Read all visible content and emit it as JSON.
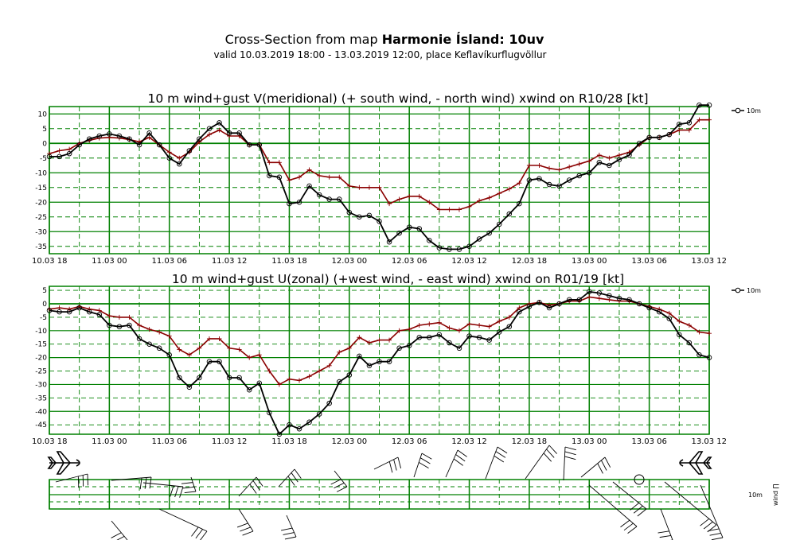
{
  "header": {
    "title_prefix": "Cross-Section from map ",
    "title_bold": "Harmonie Ísland: 10uv",
    "subtitle": "valid 10.03.2019 18:00 - 13.03.2019 12:00, place Keflavíkurflugvöllur"
  },
  "chart_data": [
    {
      "type": "line",
      "title": "10 m wind+gust V(meridional) (+ south wind, - north wind) xwind on R10/28 [kt]",
      "x_tick_labels": [
        "10.03 18",
        "11.03 00",
        "11.03 06",
        "11.03 12",
        "11.03 18",
        "12.03 00",
        "12.03 06",
        "12.03 12",
        "12.03 18",
        "13.03 00",
        "13.03 06",
        "13.03 12"
      ],
      "x_unit": "hours after 10.03 18:00",
      "xlim": [
        0,
        66
      ],
      "ylim": [
        -37.5,
        12.5
      ],
      "y_ticks": [
        10,
        5,
        0,
        -5,
        -10,
        -15,
        -20,
        -25,
        -30,
        -35
      ],
      "grid": true,
      "legend_position": "right",
      "colors": {
        "wind": "#000000",
        "gust": "#8b0000",
        "grid": "#008000"
      },
      "series": [
        {
          "name": "10m",
          "role": "wind",
          "x": [
            0,
            1,
            2,
            3,
            4,
            5,
            6,
            7,
            8,
            9,
            10,
            11,
            12,
            13,
            14,
            15,
            16,
            17,
            18,
            19,
            20,
            21,
            22,
            23,
            24,
            25,
            26,
            27,
            28,
            29,
            30,
            31,
            32,
            33,
            34,
            35,
            36,
            37,
            38,
            39,
            40,
            41,
            42,
            43,
            44,
            45,
            46,
            47,
            48,
            49,
            50,
            51,
            52,
            53,
            54,
            55,
            56,
            57,
            58,
            59,
            60,
            61,
            62,
            63,
            64,
            65,
            66
          ],
          "values": [
            -4.5,
            -4.5,
            -3.5,
            -0.5,
            1.5,
            2.5,
            3.2,
            2.5,
            1.5,
            -0.5,
            3.5,
            -0.5,
            -5,
            -7,
            -2.5,
            1.5,
            5,
            7,
            3.5,
            3.5,
            -0.5,
            -0.5,
            -11,
            -11.5,
            -20.5,
            -20,
            -14.5,
            -17.5,
            -19,
            -19,
            -23.5,
            -25,
            -24.5,
            -26.5,
            -33.5,
            -30.5,
            -28.5,
            -29,
            -33,
            -35.5,
            -36,
            -36,
            -35,
            -32.5,
            -30.5,
            -27.5,
            -24,
            -20.5,
            -12.5,
            -12,
            -14,
            -14.5,
            -12.5,
            -11,
            -10,
            -6.5,
            -7.5,
            -5.5,
            -4,
            0,
            2,
            2,
            3,
            6.5,
            7,
            13,
            13
          ]
        },
        {
          "name": "",
          "role": "gust",
          "x": [
            0,
            1,
            2,
            3,
            4,
            5,
            6,
            7,
            8,
            9,
            10,
            11,
            12,
            13,
            14,
            15,
            16,
            17,
            18,
            19,
            20,
            21,
            22,
            23,
            24,
            25,
            26,
            27,
            28,
            29,
            30,
            31,
            32,
            33,
            34,
            35,
            36,
            37,
            38,
            39,
            40,
            41,
            42,
            43,
            44,
            45,
            46,
            47,
            48,
            49,
            50,
            51,
            52,
            53,
            54,
            55,
            56,
            57,
            58,
            59,
            60,
            61,
            62,
            63,
            64,
            65,
            66
          ],
          "values": [
            -3.5,
            -2.5,
            -2,
            0,
            1,
            1.8,
            2,
            1.8,
            1.3,
            0.5,
            2,
            -0.5,
            -3,
            -5,
            -3,
            0.5,
            3,
            4.5,
            2.5,
            2.5,
            -0.5,
            -0.5,
            -6.5,
            -6.5,
            -12.5,
            -11.5,
            -9,
            -11,
            -11.5,
            -11.5,
            -14.5,
            -15,
            -15,
            -15,
            -20.5,
            -19,
            -18,
            -18,
            -20,
            -22.5,
            -22.5,
            -22.5,
            -21.5,
            -19.5,
            -18.5,
            -17,
            -15.5,
            -13.5,
            -7.5,
            -7.5,
            -8.5,
            -9,
            -8,
            -7,
            -6,
            -4,
            -5,
            -4,
            -3,
            -0.5,
            2,
            2,
            3,
            4.5,
            4.5,
            8,
            8
          ]
        }
      ]
    },
    {
      "type": "line",
      "title": "10 m wind+gust U(zonal) (+west wind, - east wind) xwind on R01/19 [kt]",
      "x_tick_labels": [
        "10.03 18",
        "11.03 00",
        "11.03 06",
        "11.03 12",
        "11.03 18",
        "12.03 00",
        "12.03 06",
        "12.03 12",
        "12.03 18",
        "13.03 00",
        "13.03 06",
        "13.03 12"
      ],
      "x_unit": "hours after 10.03 18:00",
      "xlim": [
        0,
        66
      ],
      "ylim": [
        -48.5,
        6.5
      ],
      "y_ticks": [
        5,
        0,
        -5,
        -10,
        -15,
        -20,
        -25,
        -30,
        -35,
        -40,
        -45
      ],
      "grid": true,
      "legend_position": "right",
      "colors": {
        "wind": "#000000",
        "gust": "#8b0000",
        "grid": "#008000"
      },
      "series": [
        {
          "name": "10m",
          "role": "wind",
          "x": [
            0,
            1,
            2,
            3,
            4,
            5,
            6,
            7,
            8,
            9,
            10,
            11,
            12,
            13,
            14,
            15,
            16,
            17,
            18,
            19,
            20,
            21,
            22,
            23,
            24,
            25,
            26,
            27,
            28,
            29,
            30,
            31,
            32,
            33,
            34,
            35,
            36,
            37,
            38,
            39,
            40,
            41,
            42,
            43,
            44,
            45,
            46,
            47,
            48,
            49,
            50,
            51,
            52,
            53,
            54,
            55,
            56,
            57,
            58,
            59,
            60,
            61,
            62,
            63,
            64,
            65,
            66
          ],
          "values": [
            -2.5,
            -3,
            -3,
            -1.5,
            -3,
            -4,
            -8,
            -8.5,
            -8,
            -13,
            -15,
            -16.5,
            -19,
            -27.5,
            -31,
            -27.5,
            -21.5,
            -21.5,
            -27.5,
            -27.5,
            -32,
            -29.5,
            -40.5,
            -48.5,
            -45,
            -46.5,
            -44,
            -41,
            -37,
            -29,
            -26.5,
            -19.5,
            -23,
            -21.5,
            -21.5,
            -16.5,
            -15.5,
            -12.5,
            -12.5,
            -11.5,
            -14.5,
            -16.5,
            -12,
            -12.5,
            -13.5,
            -10.5,
            -8.5,
            -3,
            -1,
            0.5,
            -1.5,
            0,
            1.5,
            1.5,
            4.5,
            4,
            3,
            2,
            1.5,
            0,
            -1.5,
            -3,
            -5.5,
            -11.5,
            -14.5,
            -19,
            -20
          ]
        },
        {
          "name": "",
          "role": "gust",
          "x": [
            0,
            1,
            2,
            3,
            4,
            5,
            6,
            7,
            8,
            9,
            10,
            11,
            12,
            13,
            14,
            15,
            16,
            17,
            18,
            19,
            20,
            21,
            22,
            23,
            24,
            25,
            26,
            27,
            28,
            29,
            30,
            31,
            32,
            33,
            34,
            35,
            36,
            37,
            38,
            39,
            40,
            41,
            42,
            43,
            44,
            45,
            46,
            47,
            48,
            49,
            50,
            51,
            52,
            53,
            54,
            55,
            56,
            57,
            58,
            59,
            60,
            61,
            62,
            63,
            64,
            65,
            66
          ],
          "values": [
            -2,
            -1.5,
            -2,
            -1,
            -2,
            -2.5,
            -4.5,
            -5,
            -5,
            -8,
            -9.5,
            -10.5,
            -12,
            -17,
            -19,
            -16.5,
            -13,
            -13,
            -16.5,
            -17,
            -20,
            -19,
            -25,
            -30,
            -28,
            -28.5,
            -27,
            -25,
            -23,
            -18,
            -16.5,
            -12.5,
            -14.5,
            -13.5,
            -13.5,
            -10,
            -9.5,
            -8,
            -7.5,
            -7,
            -9,
            -10,
            -7.5,
            -8,
            -8.5,
            -6.5,
            -5,
            -1.5,
            0,
            0.5,
            -0.5,
            0,
            1,
            1,
            2.5,
            2,
            1.5,
            1,
            1,
            0,
            -1,
            -2,
            -3.5,
            -6.5,
            -8,
            -10.5,
            -11
          ]
        }
      ]
    }
  ],
  "bottom_strip": {
    "label_level": "10m",
    "label_axis": "wind ∏",
    "icons": [
      "airplane-left-icon",
      "airplane-right-icon"
    ]
  }
}
